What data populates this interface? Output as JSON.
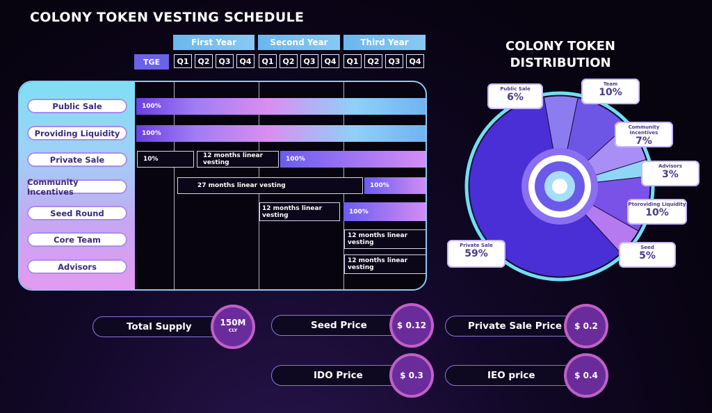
{
  "schedule": {
    "title": "COLONY TOKEN VESTING SCHEDULE",
    "years": [
      "First Year",
      "Second Year",
      "Third Year"
    ],
    "tge_label": "TGE",
    "quarters": [
      "Q1",
      "Q2",
      "Q3",
      "Q4",
      "Q1",
      "Q2",
      "Q3",
      "Q4",
      "Q1",
      "Q2",
      "Q3",
      "Q4"
    ],
    "rows": [
      "Public Sale",
      "Providing Liquidity",
      "Private Sale",
      "Community Incentives",
      "Seed Round",
      "Core Team",
      "Advisors"
    ],
    "bar_labels": {
      "public_sale": "100%",
      "liquidity": "100%",
      "private_tge": "10%",
      "private_vest": "12 months linear vesting",
      "private_end": "100%",
      "community_vest": "27 months linear vesting",
      "community_end": "100%",
      "seed_vest": "12 months linear vesting",
      "seed_end": "100%",
      "team_vest": "12 months linear vesting",
      "advisors_vest": "12 months linear vesting"
    }
  },
  "distribution": {
    "title_line1": "COLONY TOKEN",
    "title_line2": "DISTRIBUTION",
    "slices": [
      {
        "name": "Public Sale",
        "pct": "6%",
        "value": 6,
        "color": "#8d7cf0"
      },
      {
        "name": "Team",
        "pct": "10%",
        "value": 10,
        "color": "#6d55e6"
      },
      {
        "name": "Community Incentives",
        "pct": "7%",
        "value": 7,
        "color": "#a98ff5"
      },
      {
        "name": "Advisors",
        "pct": "3%",
        "value": 3,
        "color": "#8fd6f6"
      },
      {
        "name": "Ptoroviding Liquidity",
        "pct": "10%",
        "value": 10,
        "color": "#7a52e8"
      },
      {
        "name": "Seed",
        "pct": "5%",
        "value": 5,
        "color": "#b57af0"
      },
      {
        "name": "Private Sale",
        "pct": "59%",
        "value": 59,
        "color": "#4a2ed6"
      }
    ]
  },
  "stats": {
    "total_supply_label": "Total Supply",
    "total_supply_value": "150M",
    "total_supply_unit": "CLY",
    "seed_price_label": "Seed Price",
    "seed_price_value": "$ 0.12",
    "private_price_label": "Private Sale Price",
    "private_price_value": "$ 0.2",
    "ido_price_label": "IDO Price",
    "ido_price_value": "$ 0.3",
    "ieo_price_label": "IEO price",
    "ieo_price_value": "$ 0.4"
  },
  "chart_data": {
    "type": "pie",
    "title": "COLONY TOKEN DISTRIBUTION",
    "categories": [
      "Public Sale",
      "Team",
      "Community Incentives",
      "Advisors",
      "Ptoroviding Liquidity",
      "Seed",
      "Private Sale"
    ],
    "values": [
      6,
      10,
      7,
      3,
      10,
      5,
      59
    ],
    "legend": "callouts"
  }
}
